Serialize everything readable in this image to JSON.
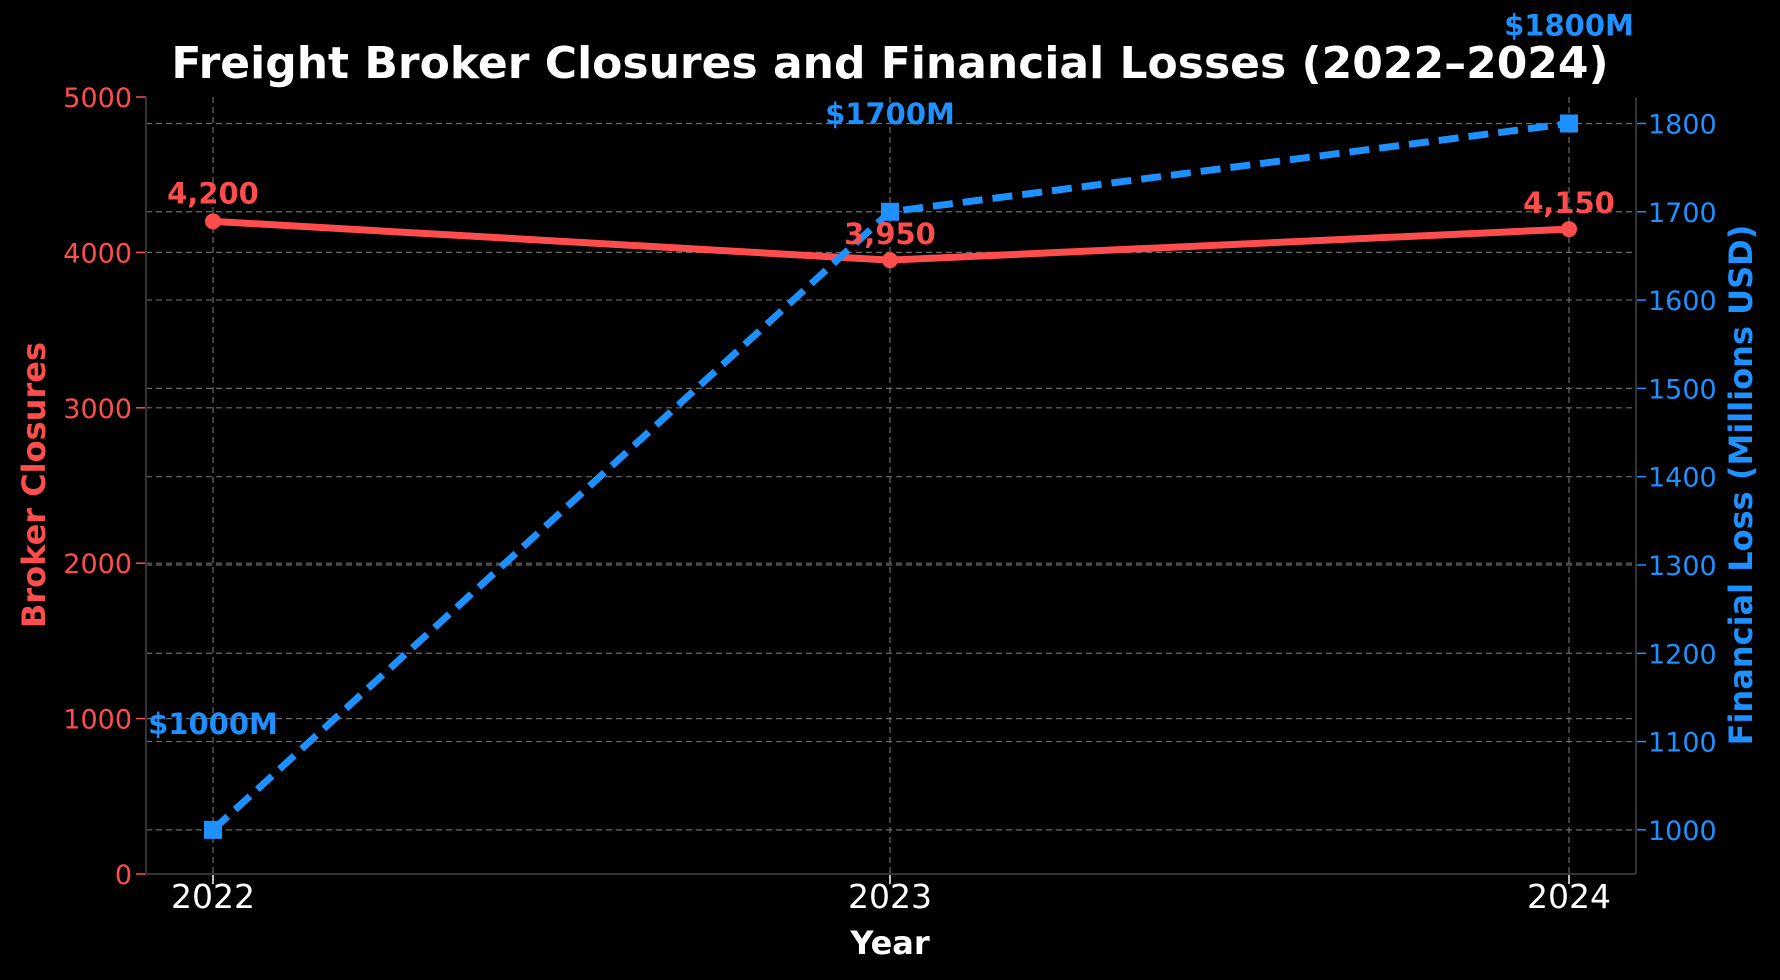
{
  "colors": {
    "background": "#000000",
    "closures": "#ff4d4d",
    "losses": "#1e90ff",
    "text": "#ffffff",
    "grid": "#777777"
  },
  "chart_data": {
    "type": "line",
    "title": "Freight Broker Closures and Financial Losses (2022–2024)",
    "xlabel": "Year",
    "categories": [
      "2022",
      "2023",
      "2024"
    ],
    "grid": true,
    "series": [
      {
        "name": "Broker Closures",
        "axis": "left",
        "style": "solid",
        "marker": "circle",
        "values": [
          4200,
          3950,
          4150
        ],
        "labels": [
          "4,200",
          "3,950",
          "4,150"
        ]
      },
      {
        "name": "Financial Loss (Millions USD)",
        "axis": "right",
        "style": "dashed",
        "marker": "square",
        "values": [
          1000,
          1700,
          1800
        ],
        "labels": [
          "$1000M",
          "$1700M",
          "$1800M"
        ]
      }
    ],
    "y_left": {
      "label": "Broker Closures",
      "lim": [
        0,
        5000
      ],
      "ticks": [
        "0",
        "1000",
        "2000",
        "3000",
        "4000",
        "5000"
      ]
    },
    "y_right": {
      "label": "Financial Loss (Millions USD)",
      "lim": [
        950,
        1830
      ],
      "ticks": [
        "1000",
        "1100",
        "1200",
        "1300",
        "1400",
        "1500",
        "1600",
        "1700",
        "1800"
      ]
    }
  }
}
